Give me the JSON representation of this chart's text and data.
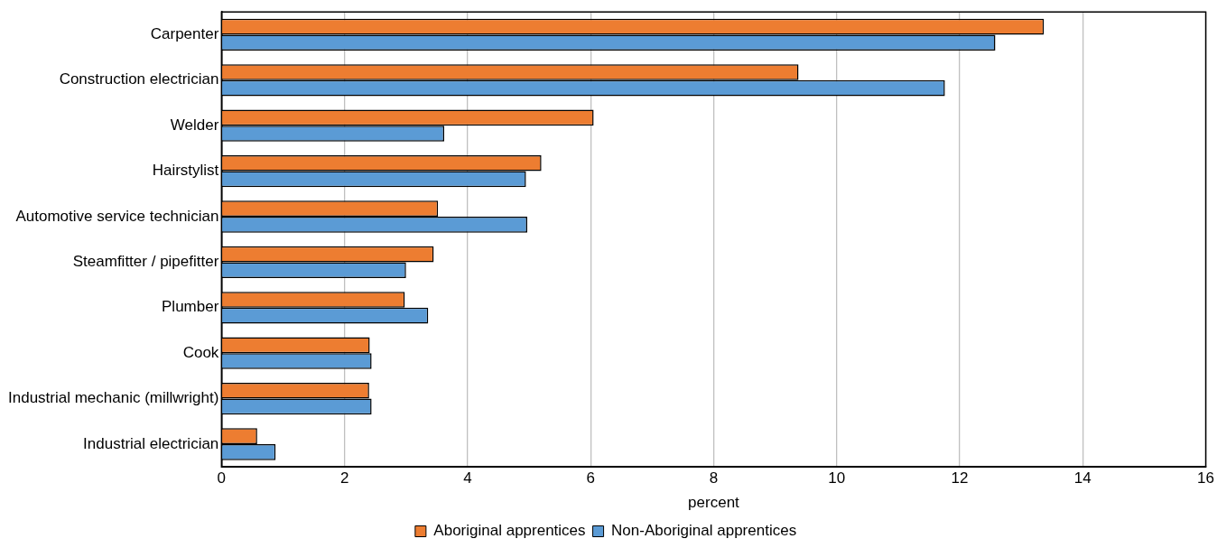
{
  "chart_data": {
    "type": "bar",
    "orientation": "horizontal",
    "xlabel": "percent",
    "categories": [
      "Carpenter",
      "Construction electrician",
      "Welder",
      "Hairstylist",
      "Automotive service technician",
      "Steamfitter / pipefitter",
      "Plumber",
      "Cook",
      "Industrial mechanic (millwright)",
      "Industrial electrician"
    ],
    "series": [
      {
        "name": "Aboriginal apprentices",
        "color": "#ed7d31",
        "values": [
          13.37,
          9.38,
          6.05,
          5.2,
          3.52,
          3.45,
          2.98,
          2.41,
          2.4,
          0.58
        ]
      },
      {
        "name": "Non-Aboriginal apprentices",
        "color": "#5b9bd5",
        "values": [
          12.58,
          11.76,
          3.62,
          4.95,
          4.97,
          3.0,
          3.36,
          2.44,
          2.44,
          0.88
        ]
      }
    ],
    "xlim": [
      0,
      16
    ],
    "xticks": [
      0,
      2,
      4,
      6,
      8,
      10,
      12,
      14,
      16
    ],
    "grid": "x",
    "legend": "bottom"
  }
}
